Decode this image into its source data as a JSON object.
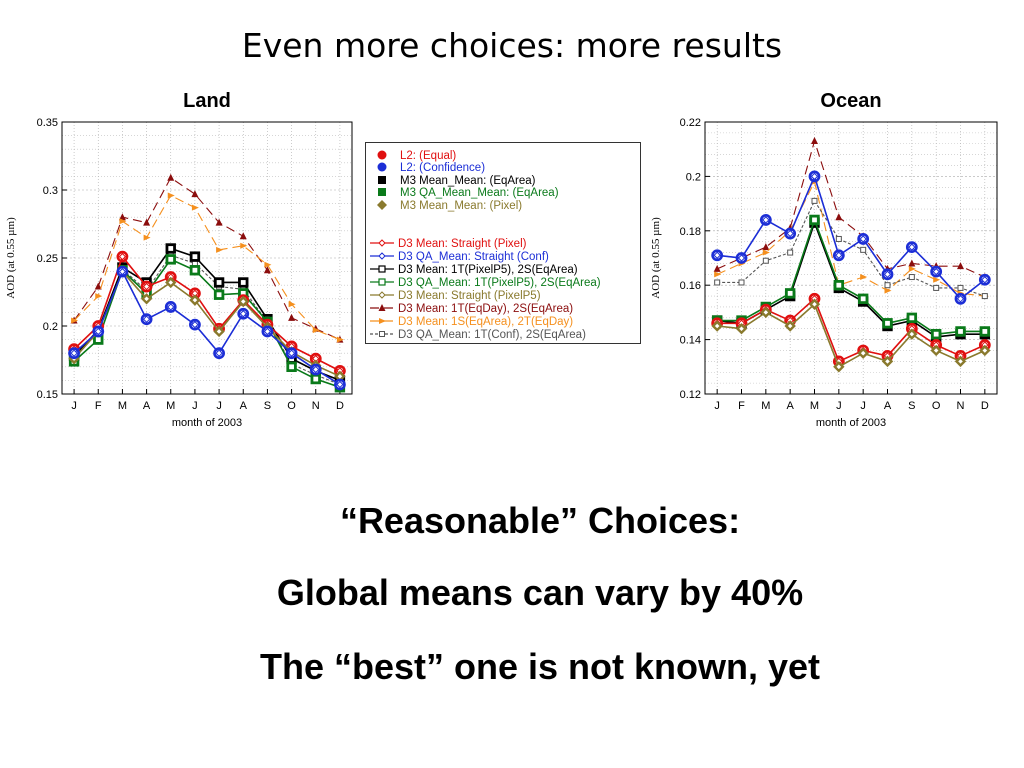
{
  "slide": {
    "title": "Even more choices: more results",
    "statements": [
      "“Reasonable” Choices:",
      "Global means can vary by 40%",
      "The “best” one is not known, yet"
    ]
  },
  "chart_data": [
    {
      "type": "line",
      "title": "Land",
      "xlabel": "month of 2003",
      "ylabel": "AOD (at 0.55 µm)",
      "ylim": [
        0.15,
        0.35
      ],
      "yticks": [
        0.15,
        0.2,
        0.25,
        0.3,
        0.35
      ],
      "ytick_labels": [
        "0.15",
        "0.2",
        "0.25",
        "0.3",
        "0.35"
      ],
      "grid": true,
      "categories": [
        "J",
        "F",
        "M",
        "A",
        "M",
        "J",
        "J",
        "A",
        "S",
        "O",
        "N",
        "D"
      ],
      "series": [
        {
          "name": "L2: (Equal)",
          "color": "#e01010",
          "marker": "circle-big",
          "dash": "none",
          "values": [
            0.183,
            0.2,
            0.251,
            0.229,
            0.236,
            0.224,
            0.198,
            0.219,
            0.201,
            0.185,
            0.176,
            0.167
          ]
        },
        {
          "name": "L2: (Confidence)",
          "color": "#1c2ed6",
          "marker": "circle-big",
          "dash": "none",
          "values": [
            0.18,
            0.196,
            0.24,
            0.205,
            0.214,
            0.201,
            0.18,
            0.209,
            0.196,
            0.18,
            0.168,
            0.157
          ]
        },
        {
          "name": "M3 Mean_Mean: (EqArea)",
          "color": "#000000",
          "marker": "square-big",
          "dash": "none",
          "values": [
            0.178,
            0.197,
            0.243,
            0.232,
            0.257,
            0.251,
            0.232,
            0.232,
            0.205,
            0.176,
            0.167,
            0.16
          ]
        },
        {
          "name": "M3 QA_Mean_Mean: (EqArea)",
          "color": "#0a7a1a",
          "marker": "square-big",
          "dash": "none",
          "values": [
            0.174,
            0.19,
            0.241,
            0.224,
            0.249,
            0.241,
            0.223,
            0.224,
            0.203,
            0.17,
            0.161,
            0.155
          ]
        },
        {
          "name": "M3 Mean_Mean: (Pixel)",
          "color": "#8a7a2e",
          "marker": "diamond-big",
          "dash": "none",
          "values": [
            0.176,
            0.196,
            0.24,
            0.22,
            0.232,
            0.219,
            0.196,
            0.218,
            0.199,
            0.181,
            0.171,
            0.163
          ]
        },
        {
          "name": "D3 Mean: Straight (Pixel)",
          "color": "#e01010",
          "marker": "diamond",
          "dash": "none",
          "values": [
            0.183,
            0.2,
            0.251,
            0.229,
            0.236,
            0.224,
            0.198,
            0.219,
            0.201,
            0.185,
            0.176,
            0.167
          ]
        },
        {
          "name": "D3 QA_Mean: Straight (Conf)",
          "color": "#1c2ed6",
          "marker": "diamond",
          "dash": "none",
          "values": [
            0.18,
            0.196,
            0.24,
            0.205,
            0.214,
            0.201,
            0.18,
            0.209,
            0.196,
            0.18,
            0.168,
            0.157
          ]
        },
        {
          "name": "D3 Mean: 1T(PixelP5), 2S(EqArea)",
          "color": "#000000",
          "marker": "square",
          "dash": "none",
          "values": [
            0.178,
            0.197,
            0.243,
            0.232,
            0.257,
            0.251,
            0.232,
            0.232,
            0.205,
            0.176,
            0.167,
            0.16
          ]
        },
        {
          "name": "D3 QA_Mean: 1T(PixelP5), 2S(EqArea)",
          "color": "#0a7a1a",
          "marker": "square",
          "dash": "none",
          "values": [
            0.174,
            0.19,
            0.241,
            0.224,
            0.249,
            0.241,
            0.223,
            0.224,
            0.203,
            0.17,
            0.161,
            0.155
          ]
        },
        {
          "name": "D3 Mean: Straight (PixelP5)",
          "color": "#8a7a2e",
          "marker": "diamond",
          "dash": "none",
          "values": [
            0.176,
            0.196,
            0.24,
            0.22,
            0.232,
            0.219,
            0.196,
            0.218,
            0.199,
            0.181,
            0.171,
            0.163
          ]
        },
        {
          "name": "D3 Mean: 1T(EqDay), 2S(EqArea)",
          "color": "#8b0d0d",
          "marker": "triangle",
          "dash": "long",
          "values": [
            0.204,
            0.229,
            0.28,
            0.276,
            0.309,
            0.297,
            0.276,
            0.266,
            0.241,
            0.206,
            0.198,
            0.19
          ]
        },
        {
          "name": "D3 Mean: 1S(EqArea), 2T(EqDay)",
          "color": "#f5901e",
          "marker": "arrow",
          "dash": "long",
          "values": [
            0.204,
            0.222,
            0.277,
            0.265,
            0.296,
            0.287,
            0.256,
            0.259,
            0.245,
            0.216,
            0.197,
            0.19
          ]
        },
        {
          "name": "D3 QA_Mean: 1T(Conf), 2S(EqArea)",
          "color": "#555555",
          "marker": "open-square",
          "dash": "short",
          "values": [
            0.18,
            0.196,
            0.242,
            0.226,
            0.252,
            0.246,
            0.229,
            0.227,
            0.203,
            0.172,
            0.164,
            0.157
          ]
        }
      ]
    },
    {
      "type": "line",
      "title": "Ocean",
      "xlabel": "month of 2003",
      "ylabel": "AOD (at 0.55 µm)",
      "ylim": [
        0.12,
        0.22
      ],
      "yticks": [
        0.12,
        0.14,
        0.16,
        0.18,
        0.2,
        0.22
      ],
      "ytick_labels": [
        "0.12",
        "0.14",
        "0.16",
        "0.18",
        "0.2",
        "0.22"
      ],
      "grid": true,
      "categories": [
        "J",
        "F",
        "M",
        "A",
        "M",
        "J",
        "J",
        "A",
        "S",
        "O",
        "N",
        "D"
      ],
      "series": [
        {
          "name": "L2: (Equal)",
          "color": "#e01010",
          "marker": "circle-big",
          "dash": "none",
          "values": [
            0.146,
            0.146,
            0.151,
            0.147,
            0.155,
            0.132,
            0.136,
            0.134,
            0.144,
            0.138,
            0.134,
            0.138
          ]
        },
        {
          "name": "L2: (Confidence)",
          "color": "#1c2ed6",
          "marker": "circle-big",
          "dash": "none",
          "values": [
            0.171,
            0.17,
            0.184,
            0.179,
            0.2,
            0.171,
            0.177,
            0.164,
            0.174,
            0.165,
            0.155,
            0.162
          ]
        },
        {
          "name": "M3 Mean_Mean: (EqArea)",
          "color": "#000000",
          "marker": "square-big",
          "dash": "none",
          "values": [
            0.147,
            0.146,
            0.151,
            0.156,
            0.183,
            0.159,
            0.154,
            0.145,
            0.147,
            0.141,
            0.142,
            0.142
          ]
        },
        {
          "name": "M3 QA_Mean_Mean: (EqArea)",
          "color": "#0a7a1a",
          "marker": "square-big",
          "dash": "none",
          "values": [
            0.147,
            0.147,
            0.152,
            0.157,
            0.184,
            0.16,
            0.155,
            0.146,
            0.148,
            0.142,
            0.143,
            0.143
          ]
        },
        {
          "name": "M3 Mean_Mean: (Pixel)",
          "color": "#8a7a2e",
          "marker": "diamond-big",
          "dash": "none",
          "values": [
            0.145,
            0.144,
            0.15,
            0.145,
            0.153,
            0.13,
            0.135,
            0.132,
            0.142,
            0.136,
            0.132,
            0.136
          ]
        },
        {
          "name": "D3 Mean: Straight (Pixel)",
          "color": "#e01010",
          "marker": "diamond",
          "dash": "none",
          "values": [
            0.146,
            0.146,
            0.151,
            0.147,
            0.155,
            0.132,
            0.136,
            0.134,
            0.144,
            0.138,
            0.134,
            0.138
          ]
        },
        {
          "name": "D3 QA_Mean: Straight (Conf)",
          "color": "#1c2ed6",
          "marker": "diamond",
          "dash": "none",
          "values": [
            0.171,
            0.17,
            0.184,
            0.179,
            0.2,
            0.171,
            0.177,
            0.164,
            0.174,
            0.165,
            0.155,
            0.162
          ]
        },
        {
          "name": "D3 Mean: 1T(PixelP5), 2S(EqArea)",
          "color": "#000000",
          "marker": "square",
          "dash": "none",
          "values": [
            0.147,
            0.146,
            0.151,
            0.156,
            0.183,
            0.159,
            0.154,
            0.145,
            0.147,
            0.141,
            0.142,
            0.142
          ]
        },
        {
          "name": "D3 QA_Mean: 1T(PixelP5), 2S(EqArea)",
          "color": "#0a7a1a",
          "marker": "square",
          "dash": "none",
          "values": [
            0.147,
            0.147,
            0.152,
            0.157,
            0.184,
            0.16,
            0.155,
            0.146,
            0.148,
            0.142,
            0.143,
            0.143
          ]
        },
        {
          "name": "D3 Mean: Straight (PixelP5)",
          "color": "#8a7a2e",
          "marker": "diamond",
          "dash": "none",
          "values": [
            0.145,
            0.144,
            0.15,
            0.145,
            0.153,
            0.13,
            0.135,
            0.132,
            0.142,
            0.136,
            0.132,
            0.136
          ]
        },
        {
          "name": "D3 Mean: 1T(EqDay), 2S(EqArea)",
          "color": "#8b0d0d",
          "marker": "triangle",
          "dash": "long",
          "values": [
            0.166,
            0.17,
            0.174,
            0.181,
            0.213,
            0.185,
            0.178,
            0.166,
            0.168,
            0.167,
            0.167,
            0.163
          ]
        },
        {
          "name": "D3 Mean: 1S(EqArea), 2T(EqDay)",
          "color": "#f5901e",
          "marker": "arrow",
          "dash": "long",
          "values": [
            0.164,
            0.168,
            0.172,
            0.18,
            0.198,
            0.16,
            0.163,
            0.158,
            0.166,
            0.162,
            0.157,
            0.156
          ]
        },
        {
          "name": "D3 QA_Mean: 1T(Conf), 2S(EqArea)",
          "color": "#555555",
          "marker": "open-square",
          "dash": "short",
          "values": [
            0.161,
            0.161,
            0.169,
            0.172,
            0.191,
            0.177,
            0.173,
            0.16,
            0.163,
            0.159,
            0.159,
            0.156
          ]
        }
      ]
    }
  ]
}
